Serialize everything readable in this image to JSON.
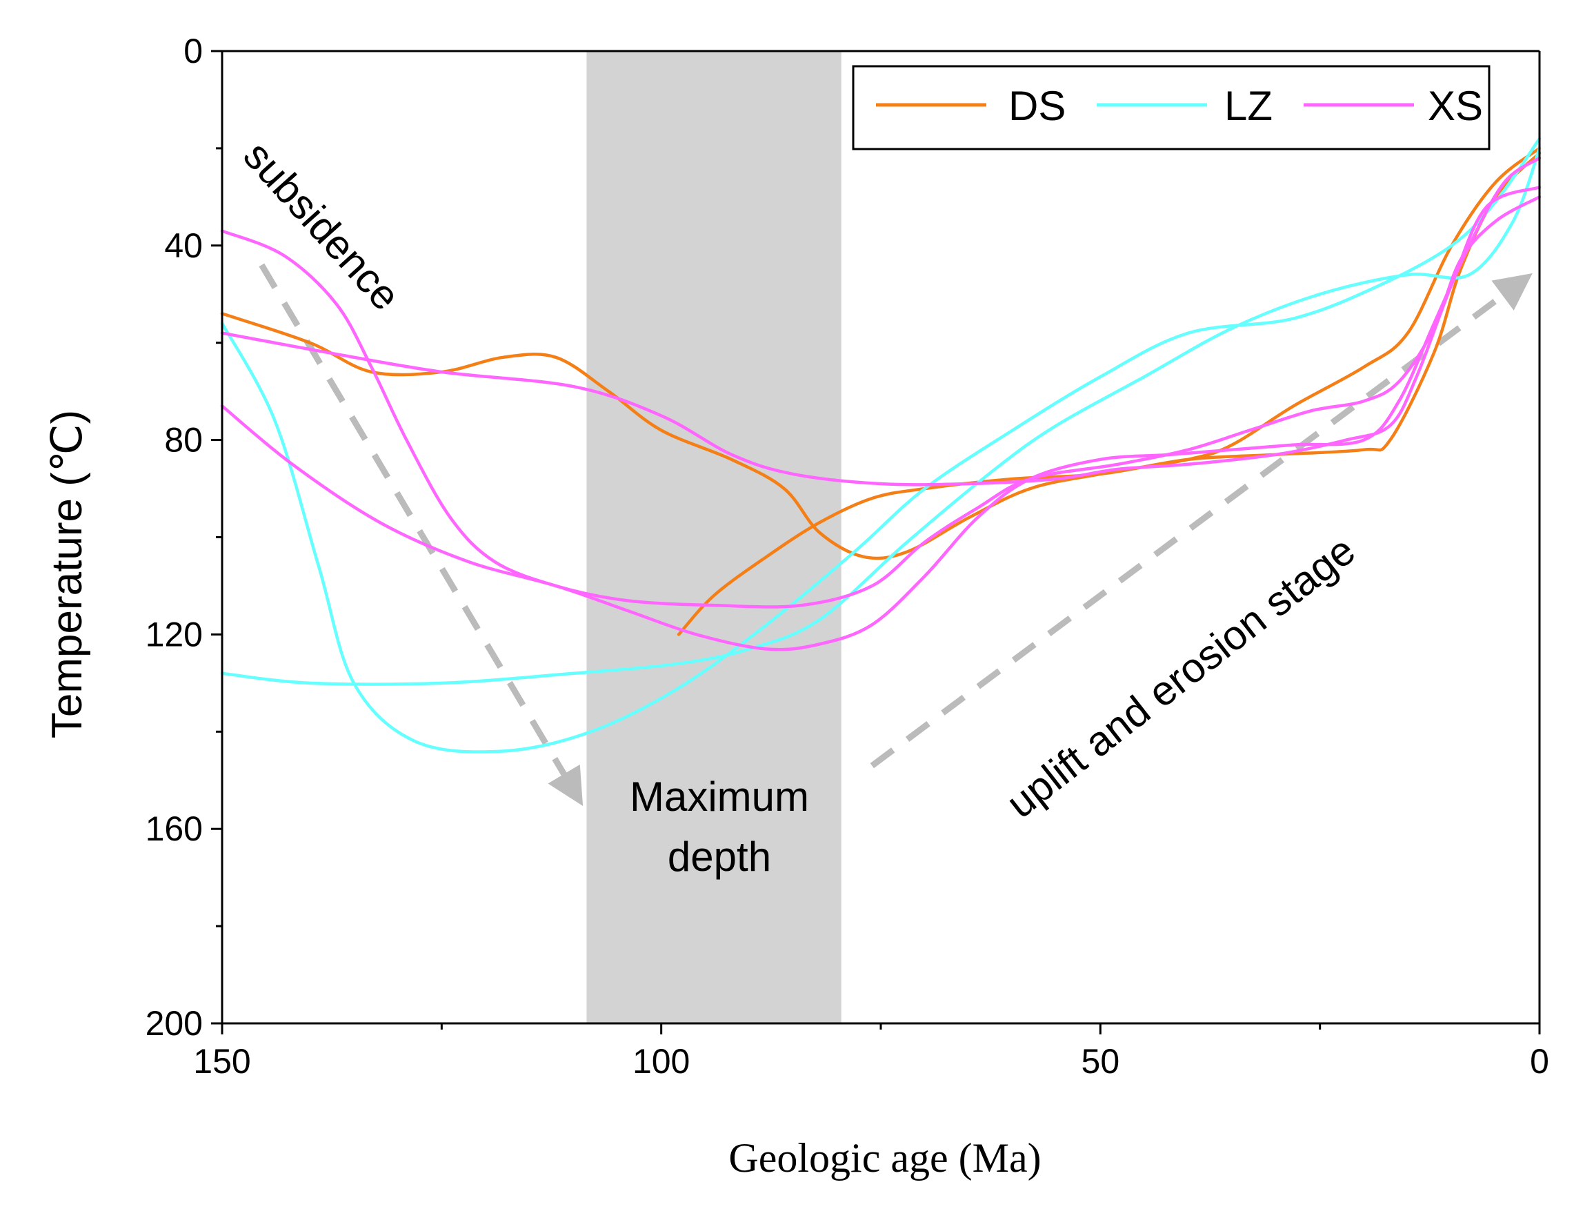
{
  "chart_data": {
    "type": "line",
    "title": "",
    "xlabel": "Geologic age (Ma)",
    "ylabel": "Temperature (℃)",
    "xlim": [
      150,
      0
    ],
    "ylim": [
      0,
      200
    ],
    "y_inverted": true,
    "x_ticks": [
      150,
      100,
      50,
      0
    ],
    "x_tick_labels": [
      "150",
      "100",
      "50",
      "0"
    ],
    "y_ticks": [
      0,
      40,
      80,
      120,
      160,
      200
    ],
    "y_tick_labels": [
      "0",
      "40",
      "80",
      "120",
      "160",
      "200"
    ],
    "legend": {
      "position": "top-right",
      "entries": [
        {
          "name": "DS",
          "color": "#F57F17"
        },
        {
          "name": "LZ",
          "color": "#66FFFF"
        },
        {
          "name": "XS",
          "color": "#FF66FF"
        }
      ]
    },
    "shaded_region": {
      "x_from": 108.5,
      "x_to": 79.5,
      "color": "#D3D3D3",
      "label_lines": [
        "Maximum",
        "depth"
      ]
    },
    "annotations": [
      {
        "text": "subsidence"
      },
      {
        "text": "uplift and erosion stage"
      }
    ],
    "arrows": [
      {
        "from": [
          145.5,
          44
        ],
        "to": [
          110,
          152
        ],
        "color": "#BBBBBB"
      },
      {
        "from": [
          76,
          147
        ],
        "to": [
          2.5,
          48
        ],
        "color": "#BBBBBB"
      }
    ],
    "series": [
      {
        "name": "DS",
        "color": "#F57F17",
        "points": [
          [
            150,
            54
          ],
          [
            140,
            60
          ],
          [
            133,
            66
          ],
          [
            125,
            66
          ],
          [
            118,
            63
          ],
          [
            112,
            63
          ],
          [
            106,
            70
          ],
          [
            100,
            78
          ],
          [
            92,
            84
          ],
          [
            86,
            90
          ],
          [
            82,
            99
          ],
          [
            77,
            104
          ],
          [
            72,
            103
          ],
          [
            65,
            96
          ],
          [
            58,
            90
          ],
          [
            50,
            87
          ],
          [
            40,
            84
          ],
          [
            35,
            81
          ],
          [
            28,
            73
          ],
          [
            20,
            65
          ],
          [
            15,
            58
          ],
          [
            10,
            40
          ],
          [
            5,
            27
          ],
          [
            0,
            20
          ]
        ]
      },
      {
        "name": "DS",
        "color": "#F57F17",
        "points": [
          [
            98,
            120
          ],
          [
            94,
            112
          ],
          [
            88,
            104
          ],
          [
            82,
            97
          ],
          [
            76,
            92
          ],
          [
            70,
            90
          ],
          [
            60,
            88
          ],
          [
            50,
            87
          ],
          [
            40,
            84
          ],
          [
            30,
            83
          ],
          [
            20,
            82
          ],
          [
            17,
            80
          ],
          [
            12,
            62
          ],
          [
            9,
            45
          ],
          [
            5,
            30
          ],
          [
            0,
            21
          ]
        ]
      },
      {
        "name": "LZ",
        "color": "#66FFFF",
        "points": [
          [
            150,
            56
          ],
          [
            144,
            76
          ],
          [
            139,
            106
          ],
          [
            135,
            130
          ],
          [
            128,
            142
          ],
          [
            118,
            144
          ],
          [
            108,
            140
          ],
          [
            98,
            131
          ],
          [
            88,
            118
          ],
          [
            78,
            103
          ],
          [
            70,
            90
          ],
          [
            60,
            78
          ],
          [
            50,
            67
          ],
          [
            40,
            58
          ],
          [
            28,
            55
          ],
          [
            18,
            48
          ],
          [
            10,
            40
          ],
          [
            5,
            31
          ],
          [
            0,
            18
          ]
        ]
      },
      {
        "name": "LZ",
        "color": "#66FFFF",
        "points": [
          [
            150,
            128
          ],
          [
            140,
            130
          ],
          [
            125,
            130
          ],
          [
            110,
            128
          ],
          [
            98,
            126
          ],
          [
            90,
            123
          ],
          [
            82,
            117
          ],
          [
            72,
            101
          ],
          [
            62,
            86
          ],
          [
            55,
            77
          ],
          [
            45,
            67
          ],
          [
            35,
            57
          ],
          [
            25,
            50
          ],
          [
            15,
            46
          ],
          [
            8,
            46
          ],
          [
            3,
            35
          ],
          [
            0,
            20
          ]
        ]
      },
      {
        "name": "XS",
        "color": "#FF66FF",
        "points": [
          [
            150,
            37
          ],
          [
            143,
            42
          ],
          [
            137,
            52
          ],
          [
            133,
            65
          ],
          [
            129,
            80
          ],
          [
            124,
            96
          ],
          [
            119,
            105
          ],
          [
            112,
            110
          ],
          [
            104,
            113
          ],
          [
            94,
            114
          ],
          [
            84,
            114
          ],
          [
            76,
            110
          ],
          [
            70,
            101
          ],
          [
            64,
            94
          ],
          [
            58,
            88
          ],
          [
            48,
            85
          ],
          [
            40,
            82
          ],
          [
            33,
            78
          ],
          [
            26,
            74
          ],
          [
            20,
            72
          ],
          [
            16,
            68
          ],
          [
            12,
            57
          ],
          [
            9,
            43
          ],
          [
            5,
            35
          ],
          [
            0,
            30
          ]
        ]
      },
      {
        "name": "XS",
        "color": "#FF66FF",
        "points": [
          [
            150,
            58
          ],
          [
            138,
            62
          ],
          [
            125,
            66
          ],
          [
            110,
            69
          ],
          [
            100,
            75
          ],
          [
            92,
            83
          ],
          [
            85,
            87
          ],
          [
            75,
            89
          ],
          [
            65,
            89
          ],
          [
            55,
            88
          ],
          [
            48,
            86
          ],
          [
            40,
            85
          ],
          [
            30,
            83
          ],
          [
            22,
            80
          ],
          [
            17,
            77
          ],
          [
            14,
            67
          ],
          [
            10,
            48
          ],
          [
            6,
            32
          ],
          [
            0,
            28
          ]
        ]
      },
      {
        "name": "XS",
        "color": "#FF66FF",
        "points": [
          [
            150,
            73
          ],
          [
            142,
            85
          ],
          [
            132,
            97
          ],
          [
            122,
            105
          ],
          [
            112,
            110
          ],
          [
            104,
            115
          ],
          [
            96,
            120
          ],
          [
            88,
            123
          ],
          [
            82,
            122
          ],
          [
            76,
            118
          ],
          [
            70,
            108
          ],
          [
            64,
            96
          ],
          [
            58,
            88
          ],
          [
            50,
            84
          ],
          [
            42,
            83
          ],
          [
            35,
            82
          ],
          [
            28,
            81
          ],
          [
            20,
            80
          ],
          [
            16,
            72
          ],
          [
            12,
            56
          ],
          [
            8,
            40
          ],
          [
            4,
            27
          ],
          [
            0,
            22
          ]
        ]
      }
    ]
  }
}
